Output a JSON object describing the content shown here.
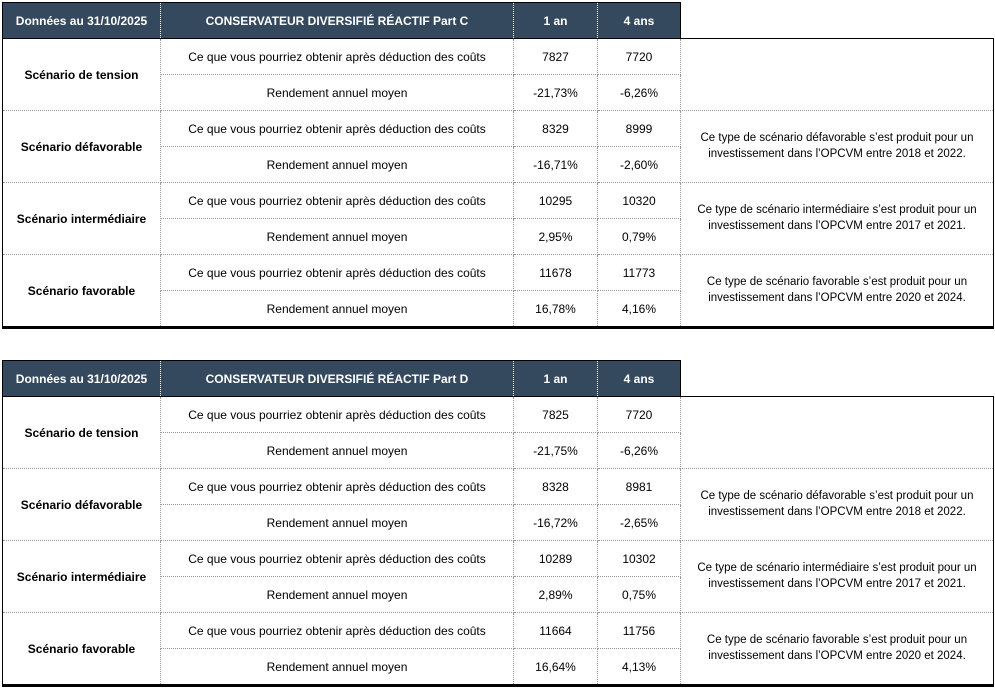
{
  "colors": {
    "header_bg": "#34485E",
    "header_text": "#ffffff",
    "solid_border": "#000000",
    "dotted_border": "#999999"
  },
  "tables": [
    {
      "header": {
        "date_label": "Données au 31/10/2025",
        "product": "CONSERVATEUR DIVERSIFIÉ RÉACTIF Part C",
        "col_1y": "1 an",
        "col_4y": "4 ans"
      },
      "scenarios": [
        {
          "label": "Scénario de tension",
          "rows": [
            {
              "label": "Ce que vous pourriez obtenir après déduction des coûts",
              "y1": "7827",
              "y4": "7720"
            },
            {
              "label": "Rendement annuel moyen",
              "y1": "-21,73%",
              "y4": "-6,26%"
            }
          ],
          "note": ""
        },
        {
          "label": "Scénario défavorable",
          "rows": [
            {
              "label": "Ce que vous pourriez obtenir après déduction des coûts",
              "y1": "8329",
              "y4": "8999"
            },
            {
              "label": "Rendement annuel moyen",
              "y1": "-16,71%",
              "y4": "-2,60%"
            }
          ],
          "note": "Ce type de scénario défavorable s’est produit pour un investissement dans l’OPCVM entre 2018 et 2022."
        },
        {
          "label": "Scénario intermédiaire",
          "rows": [
            {
              "label": "Ce que vous pourriez obtenir après déduction des coûts",
              "y1": "10295",
              "y4": "10320"
            },
            {
              "label": "Rendement annuel moyen",
              "y1": "2,95%",
              "y4": "0,79%"
            }
          ],
          "note": "Ce type de scénario intermédiaire s’est produit pour un investissement dans l’OPCVM entre 2017 et 2021."
        },
        {
          "label": "Scénario favorable",
          "rows": [
            {
              "label": "Ce que vous pourriez obtenir après déduction des coûts",
              "y1": "11678",
              "y4": "11773"
            },
            {
              "label": "Rendement annuel moyen",
              "y1": "16,78%",
              "y4": "4,16%"
            }
          ],
          "note": "Ce type de scénario favorable s’est produit pour un investissement dans l’OPCVM entre 2020 et 2024."
        }
      ]
    },
    {
      "header": {
        "date_label": "Données au 31/10/2025",
        "product": "CONSERVATEUR DIVERSIFIÉ RÉACTIF Part D",
        "col_1y": "1 an",
        "col_4y": "4 ans"
      },
      "scenarios": [
        {
          "label": "Scénario de tension",
          "rows": [
            {
              "label": "Ce que vous pourriez obtenir après déduction des coûts",
              "y1": "7825",
              "y4": "7720"
            },
            {
              "label": "Rendement annuel moyen",
              "y1": "-21,75%",
              "y4": "-6,26%"
            }
          ],
          "note": ""
        },
        {
          "label": "Scénario défavorable",
          "rows": [
            {
              "label": "Ce que vous pourriez obtenir après déduction des coûts",
              "y1": "8328",
              "y4": "8981"
            },
            {
              "label": "Rendement annuel moyen",
              "y1": "-16,72%",
              "y4": "-2,65%"
            }
          ],
          "note": "Ce type de scénario défavorable s’est produit pour un investissement dans l’OPCVM entre 2018 et 2022."
        },
        {
          "label": "Scénario intermédiaire",
          "rows": [
            {
              "label": "Ce que vous pourriez obtenir après déduction des coûts",
              "y1": "10289",
              "y4": "10302"
            },
            {
              "label": "Rendement annuel moyen",
              "y1": "2,89%",
              "y4": "0,75%"
            }
          ],
          "note": "Ce type de scénario intermédiaire s’est produit pour un investissement dans l’OPCVM entre 2017 et 2021."
        },
        {
          "label": "Scénario favorable",
          "rows": [
            {
              "label": "Ce que vous pourriez obtenir après déduction des coûts",
              "y1": "11664",
              "y4": "11756"
            },
            {
              "label": "Rendement annuel moyen",
              "y1": "16,64%",
              "y4": "4,13%"
            }
          ],
          "note": "Ce type de scénario favorable s’est produit pour un investissement dans l’OPCVM entre 2020 et 2024."
        }
      ]
    }
  ]
}
